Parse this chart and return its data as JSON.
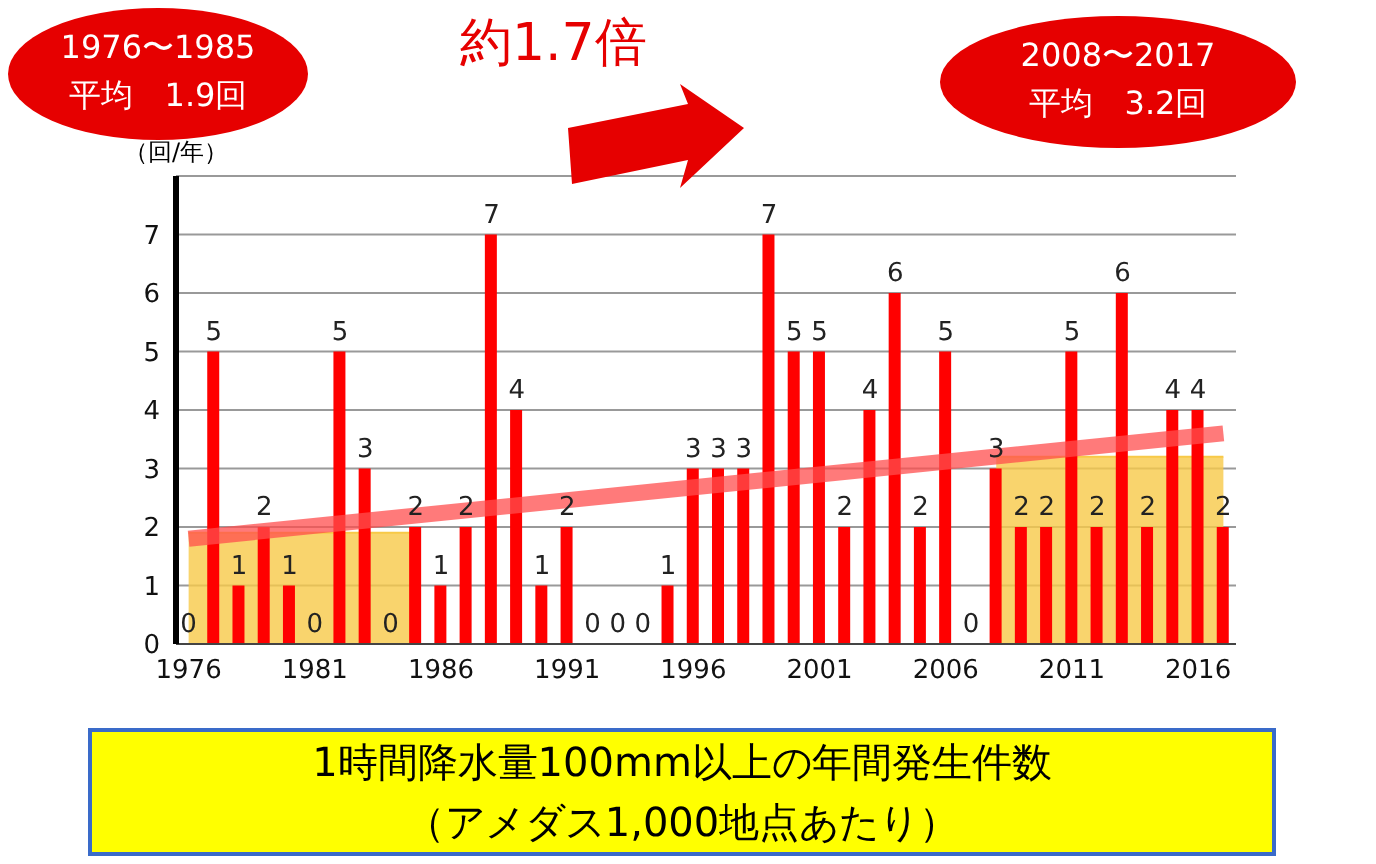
{
  "chart_data": {
    "type": "bar",
    "title": "1時間降水量100mm以上の年間発生件数",
    "subtitle": "（アメダス1,000地点あたり）",
    "ylabel": "（回/年）",
    "categories": [
      "1976",
      null,
      null,
      null,
      null,
      "1981",
      null,
      null,
      null,
      null,
      "1986",
      null,
      null,
      null,
      null,
      "1991",
      null,
      null,
      null,
      null,
      "1996",
      null,
      null,
      null,
      null,
      "2001",
      null,
      null,
      null,
      null,
      "2006",
      null,
      null,
      null,
      null,
      "2011",
      null,
      null,
      null,
      null,
      "2016",
      null
    ],
    "series": [
      {
        "type": "area",
        "color": "#f7c948",
        "values": [
          1.9,
          1.9,
          1.9,
          1.9,
          1.9,
          1.9,
          1.9,
          1.9,
          1.9,
          1.9,
          null,
          null,
          null,
          null,
          null,
          null,
          null,
          null,
          null,
          null,
          null,
          null,
          null,
          null,
          null,
          null,
          null,
          null,
          null,
          null,
          null,
          null,
          3.2,
          3.2,
          3.2,
          3.2,
          3.2,
          3.2,
          3.2,
          3.2,
          3.2,
          3.2
        ]
      },
      {
        "color": "#ff0000",
        "values": [
          0,
          5,
          1,
          2,
          1,
          0,
          5,
          3,
          0,
          2,
          1,
          2,
          7,
          4,
          1,
          2,
          0,
          0,
          0,
          1,
          3,
          3,
          3,
          7,
          5,
          5,
          2,
          4,
          6,
          2,
          5,
          0,
          3,
          2,
          2,
          5,
          2,
          6,
          2,
          4,
          4,
          2
        ],
        "value_labels": [
          "0",
          "5",
          "1",
          "2",
          "1",
          "0",
          "5",
          "3",
          "0",
          "2",
          "1",
          "2",
          "7",
          "4",
          "1",
          "2",
          "0",
          "0",
          "0",
          "1",
          "3",
          "3",
          "3",
          "7",
          "5",
          "5",
          "2",
          "4",
          "6",
          "2",
          "5",
          "0",
          "3",
          "2",
          "2",
          "5",
          "2",
          "6",
          "2",
          "4",
          "4",
          "2"
        ]
      },
      {
        "type": "line",
        "color": "#ff4d4d",
        "values": [
          1.8,
          null,
          null,
          null,
          null,
          null,
          null,
          null,
          null,
          null,
          null,
          null,
          null,
          null,
          null,
          null,
          null,
          null,
          null,
          null,
          null,
          null,
          null,
          null,
          null,
          null,
          null,
          null,
          null,
          null,
          null,
          null,
          null,
          null,
          null,
          null,
          null,
          null,
          null,
          null,
          null,
          3.6
        ]
      }
    ],
    "ylim": [
      0,
      8
    ],
    "yticks": [
      0,
      1,
      2,
      3,
      4,
      5,
      6,
      7
    ],
    "grid": "y",
    "annotations": [
      "約1.7倍",
      "1976〜1985\n平均　1.9回",
      "2008〜2017\n平均　3.2回"
    ]
  }
}
